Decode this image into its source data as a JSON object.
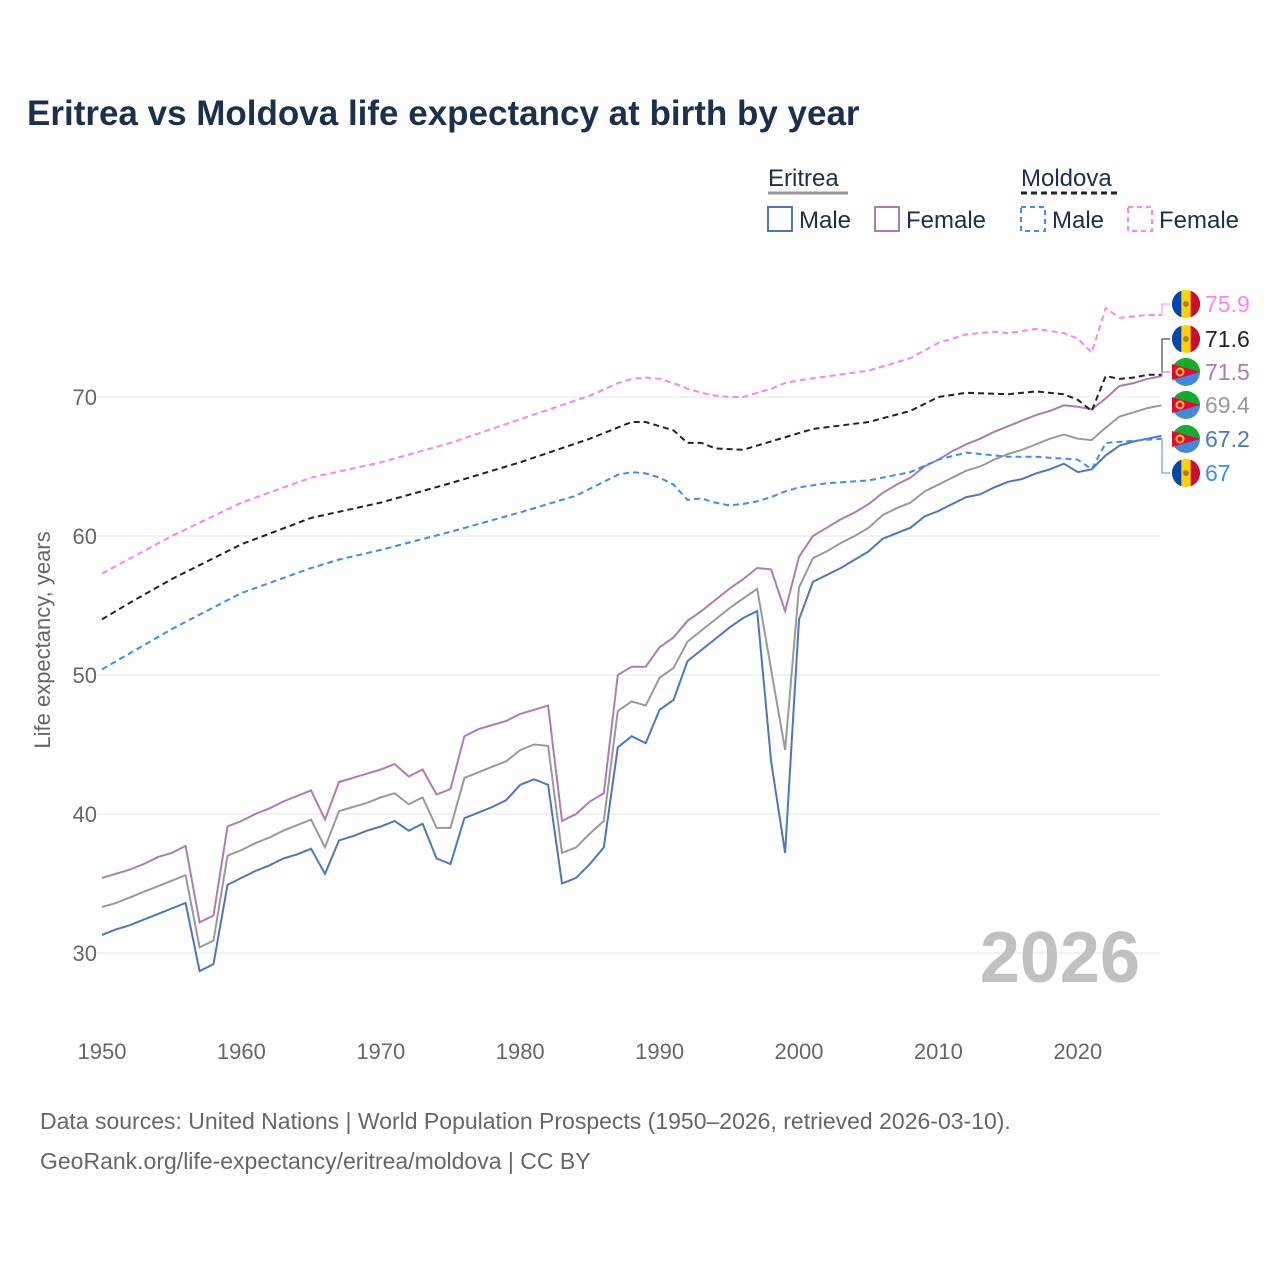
{
  "chart_data": {
    "type": "line",
    "title": "Eritrea vs Moldova life expectancy at birth by year",
    "xlabel": "",
    "ylabel": "Life expectancy, years",
    "xlim": [
      1950,
      2026
    ],
    "ylim": [
      25,
      80
    ],
    "xticks": [
      1950,
      1960,
      1970,
      1980,
      1990,
      2000,
      2010,
      2020
    ],
    "yticks": [
      30,
      40,
      50,
      60,
      70
    ],
    "year_watermark": "2026",
    "legend": {
      "groups": [
        "Eritrea",
        "Moldova"
      ],
      "items": [
        "Male",
        "Female",
        "Male",
        "Female"
      ],
      "placement": "top-right"
    },
    "colors": {
      "er_male": "#4a76c6",
      "er_female": "#b07ab5",
      "er_total": "#999999",
      "md_male": "#3a8cff",
      "md_female": "#ff80ff",
      "md_total": "#222222"
    },
    "series": [
      {
        "name": "Eritrea Male",
        "country": "Eritrea",
        "key": "er_male",
        "dash": false,
        "x_start": 1950,
        "values": [
          31.3,
          31.7,
          32.0,
          32.4,
          32.8,
          33.2,
          33.6,
          28.7,
          29.2,
          34.9,
          35.4,
          35.9,
          36.3,
          36.8,
          37.1,
          37.5,
          35.7,
          38.1,
          38.4,
          38.8,
          39.1,
          39.5,
          38.8,
          39.3,
          36.8,
          36.4,
          39.7,
          40.1,
          40.5,
          41.0,
          42.1,
          42.5,
          42.1,
          35.0,
          35.4,
          36.4,
          37.6,
          44.8,
          45.6,
          45.1,
          47.5,
          48.2,
          51.0,
          51.8,
          52.6,
          53.4,
          54.1,
          54.6,
          43.8,
          37.2,
          54.0,
          56.7,
          57.2,
          57.7,
          58.3,
          58.9,
          59.8,
          60.2,
          60.6,
          61.4,
          61.8,
          62.3,
          62.8,
          63.0,
          63.5,
          63.9,
          64.1,
          64.5,
          64.8,
          65.2,
          64.6,
          64.8,
          65.8,
          66.5,
          66.8,
          67.0,
          67.2
        ],
        "end_label": "67.2"
      },
      {
        "name": "Eritrea Female",
        "country": "Eritrea",
        "key": "er_female",
        "dash": false,
        "x_start": 1950,
        "values": [
          35.4,
          35.7,
          36.0,
          36.4,
          36.9,
          37.2,
          37.7,
          32.2,
          32.7,
          39.1,
          39.5,
          40.0,
          40.4,
          40.9,
          41.3,
          41.7,
          39.6,
          42.3,
          42.6,
          42.9,
          43.2,
          43.6,
          42.7,
          43.2,
          41.4,
          41.8,
          45.6,
          46.1,
          46.4,
          46.7,
          47.2,
          47.5,
          47.8,
          39.5,
          40.0,
          40.9,
          41.5,
          50.0,
          50.6,
          50.6,
          52.0,
          52.7,
          53.9,
          54.6,
          55.4,
          56.2,
          56.9,
          57.7,
          57.6,
          54.6,
          58.5,
          60.0,
          60.6,
          61.2,
          61.7,
          62.3,
          63.1,
          63.7,
          64.2,
          65.0,
          65.5,
          66.1,
          66.6,
          67.0,
          67.5,
          67.9,
          68.3,
          68.7,
          69.0,
          69.4,
          69.3,
          69.1,
          69.9,
          70.8,
          71.0,
          71.3,
          71.5
        ],
        "end_label": "71.5"
      },
      {
        "name": "Eritrea",
        "country": "Eritrea",
        "key": "er_total",
        "dash": false,
        "x_start": 1950,
        "values": [
          33.3,
          33.6,
          34.0,
          34.4,
          34.8,
          35.2,
          35.6,
          30.4,
          30.9,
          37.0,
          37.4,
          37.9,
          38.3,
          38.8,
          39.2,
          39.6,
          37.6,
          40.2,
          40.5,
          40.8,
          41.2,
          41.5,
          40.7,
          41.2,
          39.0,
          39.0,
          42.6,
          43.0,
          43.4,
          43.8,
          44.6,
          45.0,
          44.9,
          37.2,
          37.6,
          38.6,
          39.5,
          47.4,
          48.1,
          47.8,
          49.8,
          50.5,
          52.4,
          53.2,
          54.0,
          54.8,
          55.5,
          56.2,
          50.4,
          44.6,
          56.3,
          58.4,
          58.9,
          59.5,
          60.0,
          60.6,
          61.5,
          62.0,
          62.4,
          63.2,
          63.7,
          64.2,
          64.7,
          65.0,
          65.5,
          65.9,
          66.2,
          66.6,
          67.0,
          67.3,
          67.0,
          66.9,
          67.8,
          68.6,
          68.9,
          69.2,
          69.4
        ],
        "end_label": "69.4"
      },
      {
        "name": "Moldova Male",
        "country": "Moldova",
        "key": "md_male",
        "dash": true,
        "points": [
          [
            1950,
            50.4
          ],
          [
            1955,
            53.3
          ],
          [
            1960,
            55.9
          ],
          [
            1965,
            57.7
          ],
          [
            1967,
            58.3
          ],
          [
            1970,
            59.0
          ],
          [
            1975,
            60.3
          ],
          [
            1980,
            61.7
          ],
          [
            1982,
            62.3
          ],
          [
            1984,
            62.9
          ],
          [
            1986,
            63.9
          ],
          [
            1987,
            64.4
          ],
          [
            1988,
            64.6
          ],
          [
            1989,
            64.5
          ],
          [
            1990,
            64.2
          ],
          [
            1991,
            63.7
          ],
          [
            1992,
            62.6
          ],
          [
            1993,
            62.7
          ],
          [
            1994,
            62.4
          ],
          [
            1995,
            62.2
          ],
          [
            1996,
            62.3
          ],
          [
            1997,
            62.5
          ],
          [
            1998,
            62.8
          ],
          [
            1999,
            63.2
          ],
          [
            2000,
            63.5
          ],
          [
            2002,
            63.8
          ],
          [
            2005,
            64.0
          ],
          [
            2008,
            64.6
          ],
          [
            2010,
            65.5
          ],
          [
            2012,
            66.0
          ],
          [
            2015,
            65.7
          ],
          [
            2017,
            65.7
          ],
          [
            2020,
            65.5
          ],
          [
            2021,
            64.8
          ],
          [
            2022,
            66.7
          ],
          [
            2026,
            67.0
          ]
        ],
        "end_label": "67"
      },
      {
        "name": "Moldova Female",
        "country": "Moldova",
        "key": "md_female",
        "dash": true,
        "points": [
          [
            1950,
            57.3
          ],
          [
            1955,
            60.0
          ],
          [
            1960,
            62.4
          ],
          [
            1965,
            64.2
          ],
          [
            1970,
            65.3
          ],
          [
            1975,
            66.7
          ],
          [
            1980,
            68.4
          ],
          [
            1985,
            70.1
          ],
          [
            1987,
            71.0
          ],
          [
            1988,
            71.3
          ],
          [
            1989,
            71.4
          ],
          [
            1990,
            71.3
          ],
          [
            1991,
            71.0
          ],
          [
            1992,
            70.6
          ],
          [
            1993,
            70.3
          ],
          [
            1994,
            70.1
          ],
          [
            1995,
            70.0
          ],
          [
            1996,
            70.0
          ],
          [
            1997,
            70.3
          ],
          [
            1998,
            70.6
          ],
          [
            1999,
            71.0
          ],
          [
            2000,
            71.2
          ],
          [
            2005,
            71.9
          ],
          [
            2008,
            72.8
          ],
          [
            2010,
            73.9
          ],
          [
            2012,
            74.5
          ],
          [
            2014,
            74.7
          ],
          [
            2015,
            74.6
          ],
          [
            2017,
            74.9
          ],
          [
            2019,
            74.6
          ],
          [
            2020,
            74.2
          ],
          [
            2021,
            73.2
          ],
          [
            2022,
            76.4
          ],
          [
            2023,
            75.7
          ],
          [
            2025,
            75.9
          ],
          [
            2026,
            75.9
          ]
        ],
        "end_label": "75.9"
      },
      {
        "name": "Moldova",
        "country": "Moldova",
        "key": "md_total",
        "dash": true,
        "points": [
          [
            1950,
            54.0
          ],
          [
            1952,
            55.2
          ],
          [
            1955,
            56.9
          ],
          [
            1960,
            59.4
          ],
          [
            1965,
            61.3
          ],
          [
            1970,
            62.4
          ],
          [
            1975,
            63.8
          ],
          [
            1980,
            65.3
          ],
          [
            1985,
            67.0
          ],
          [
            1988,
            68.2
          ],
          [
            1989,
            68.2
          ],
          [
            1990,
            67.9
          ],
          [
            1991,
            67.6
          ],
          [
            1992,
            66.7
          ],
          [
            1993,
            66.7
          ],
          [
            1994,
            66.3
          ],
          [
            1996,
            66.2
          ],
          [
            1997,
            66.5
          ],
          [
            2000,
            67.4
          ],
          [
            2001,
            67.7
          ],
          [
            2005,
            68.2
          ],
          [
            2008,
            69.0
          ],
          [
            2010,
            70.0
          ],
          [
            2012,
            70.3
          ],
          [
            2015,
            70.2
          ],
          [
            2017,
            70.4
          ],
          [
            2019,
            70.2
          ],
          [
            2020,
            69.8
          ],
          [
            2021,
            69.0
          ],
          [
            2022,
            71.5
          ],
          [
            2023,
            71.3
          ],
          [
            2024,
            71.4
          ],
          [
            2025,
            71.6
          ],
          [
            2026,
            71.6
          ]
        ],
        "end_label": "71.6"
      }
    ]
  },
  "footer": {
    "line1": "Data sources: United Nations | World Population Prospects (1950–2026, retrieved 2026-03-10).",
    "line2": "GeoRank.org/life-expectancy/eritrea/moldova | CC BY"
  }
}
